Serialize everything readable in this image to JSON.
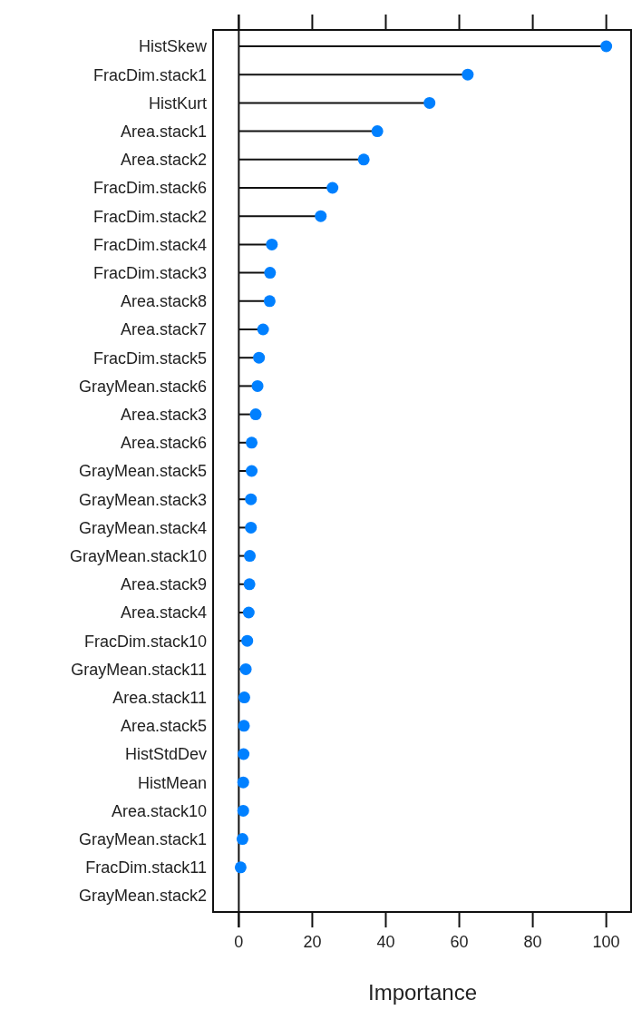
{
  "chart_data": {
    "type": "lollipop",
    "orientation": "horizontal",
    "xlabel": "Importance",
    "categories": [
      "HistSkew",
      "FracDim.stack1",
      "HistKurt",
      "Area.stack1",
      "Area.stack2",
      "FracDim.stack6",
      "FracDim.stack2",
      "FracDim.stack4",
      "FracDim.stack3",
      "Area.stack8",
      "Area.stack7",
      "FracDim.stack5",
      "GrayMean.stack6",
      "Area.stack3",
      "Area.stack6",
      "GrayMean.stack5",
      "GrayMean.stack3",
      "GrayMean.stack4",
      "GrayMean.stack10",
      "Area.stack9",
      "Area.stack4",
      "FracDim.stack10",
      "GrayMean.stack11",
      "Area.stack11",
      "Area.stack5",
      "HistStdDev",
      "HistMean",
      "Area.stack10",
      "GrayMean.stack1",
      "FracDim.stack11",
      "GrayMean.stack2"
    ],
    "values": [
      100,
      62.3,
      51.9,
      37.7,
      34,
      25.5,
      22.3,
      9,
      8.5,
      8.4,
      6.6,
      5.5,
      5.1,
      4.6,
      3.5,
      3.5,
      3.3,
      3.3,
      3,
      2.9,
      2.7,
      2.3,
      1.9,
      1.5,
      1.4,
      1.3,
      1.2,
      1.2,
      1,
      0.5,
      null
    ],
    "color": "#0080ff",
    "marker": "circle",
    "xlim": [
      -7,
      107
    ],
    "xticks": [
      0,
      20,
      40,
      60,
      80,
      100
    ],
    "tick_labels": "xy"
  }
}
